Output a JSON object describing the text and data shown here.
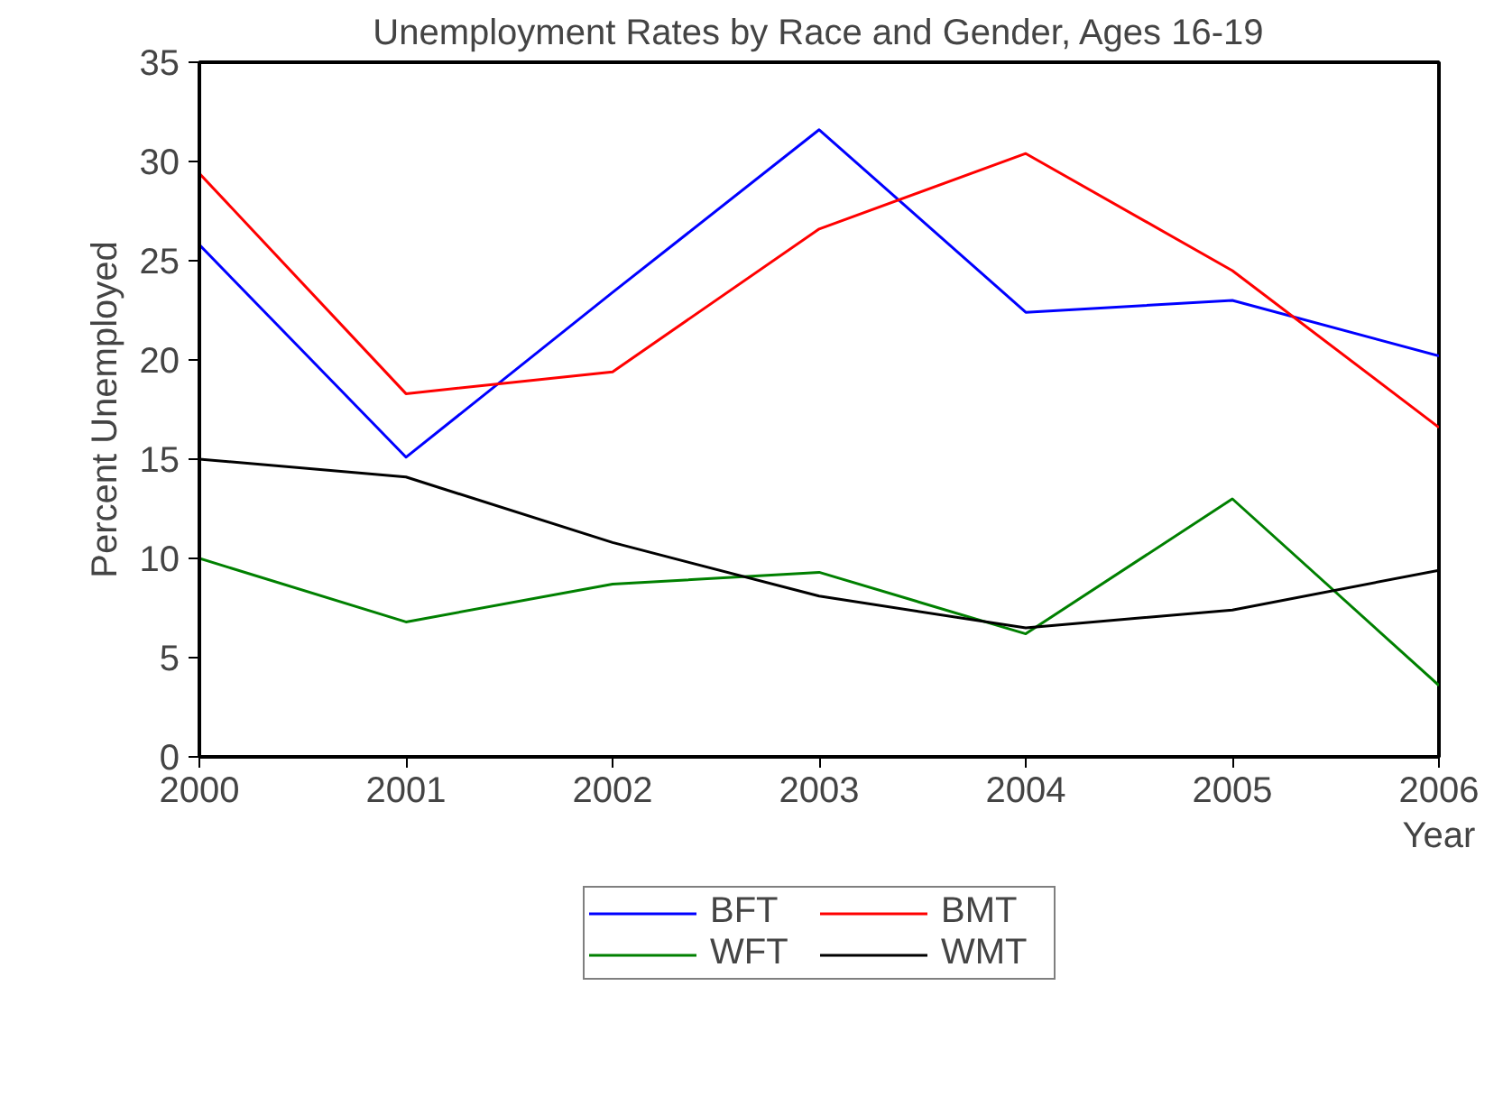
{
  "chart_data": {
    "type": "line",
    "title": "Unemployment Rates by Race and Gender, Ages 16-19",
    "xlabel": "Year",
    "ylabel": "Percent Unemployed",
    "x": [
      2000,
      2001,
      2002,
      2003,
      2004,
      2005,
      2006
    ],
    "series": [
      {
        "name": "BFT",
        "color": "#0000ff",
        "values": [
          25.8,
          15.1,
          23.4,
          31.6,
          22.4,
          23.0,
          20.2
        ]
      },
      {
        "name": "BMT",
        "color": "#ff0000",
        "values": [
          29.4,
          18.3,
          19.4,
          26.6,
          30.4,
          24.5,
          16.6
        ]
      },
      {
        "name": "WFT",
        "color": "#008000",
        "values": [
          10.0,
          6.8,
          8.7,
          9.3,
          6.2,
          13.0,
          3.6
        ]
      },
      {
        "name": "WMT",
        "color": "#000000",
        "values": [
          15.0,
          14.1,
          10.8,
          8.1,
          6.5,
          7.4,
          9.4
        ]
      }
    ],
    "xlim": [
      2000,
      2006
    ],
    "ylim": [
      0,
      35
    ],
    "xticks": [
      2000,
      2001,
      2002,
      2003,
      2004,
      2005,
      2006
    ],
    "yticks": [
      0,
      5,
      10,
      15,
      20,
      25,
      30,
      35
    ],
    "grid": false,
    "legend": "bottom",
    "marker": "none",
    "line_style": "solid"
  }
}
